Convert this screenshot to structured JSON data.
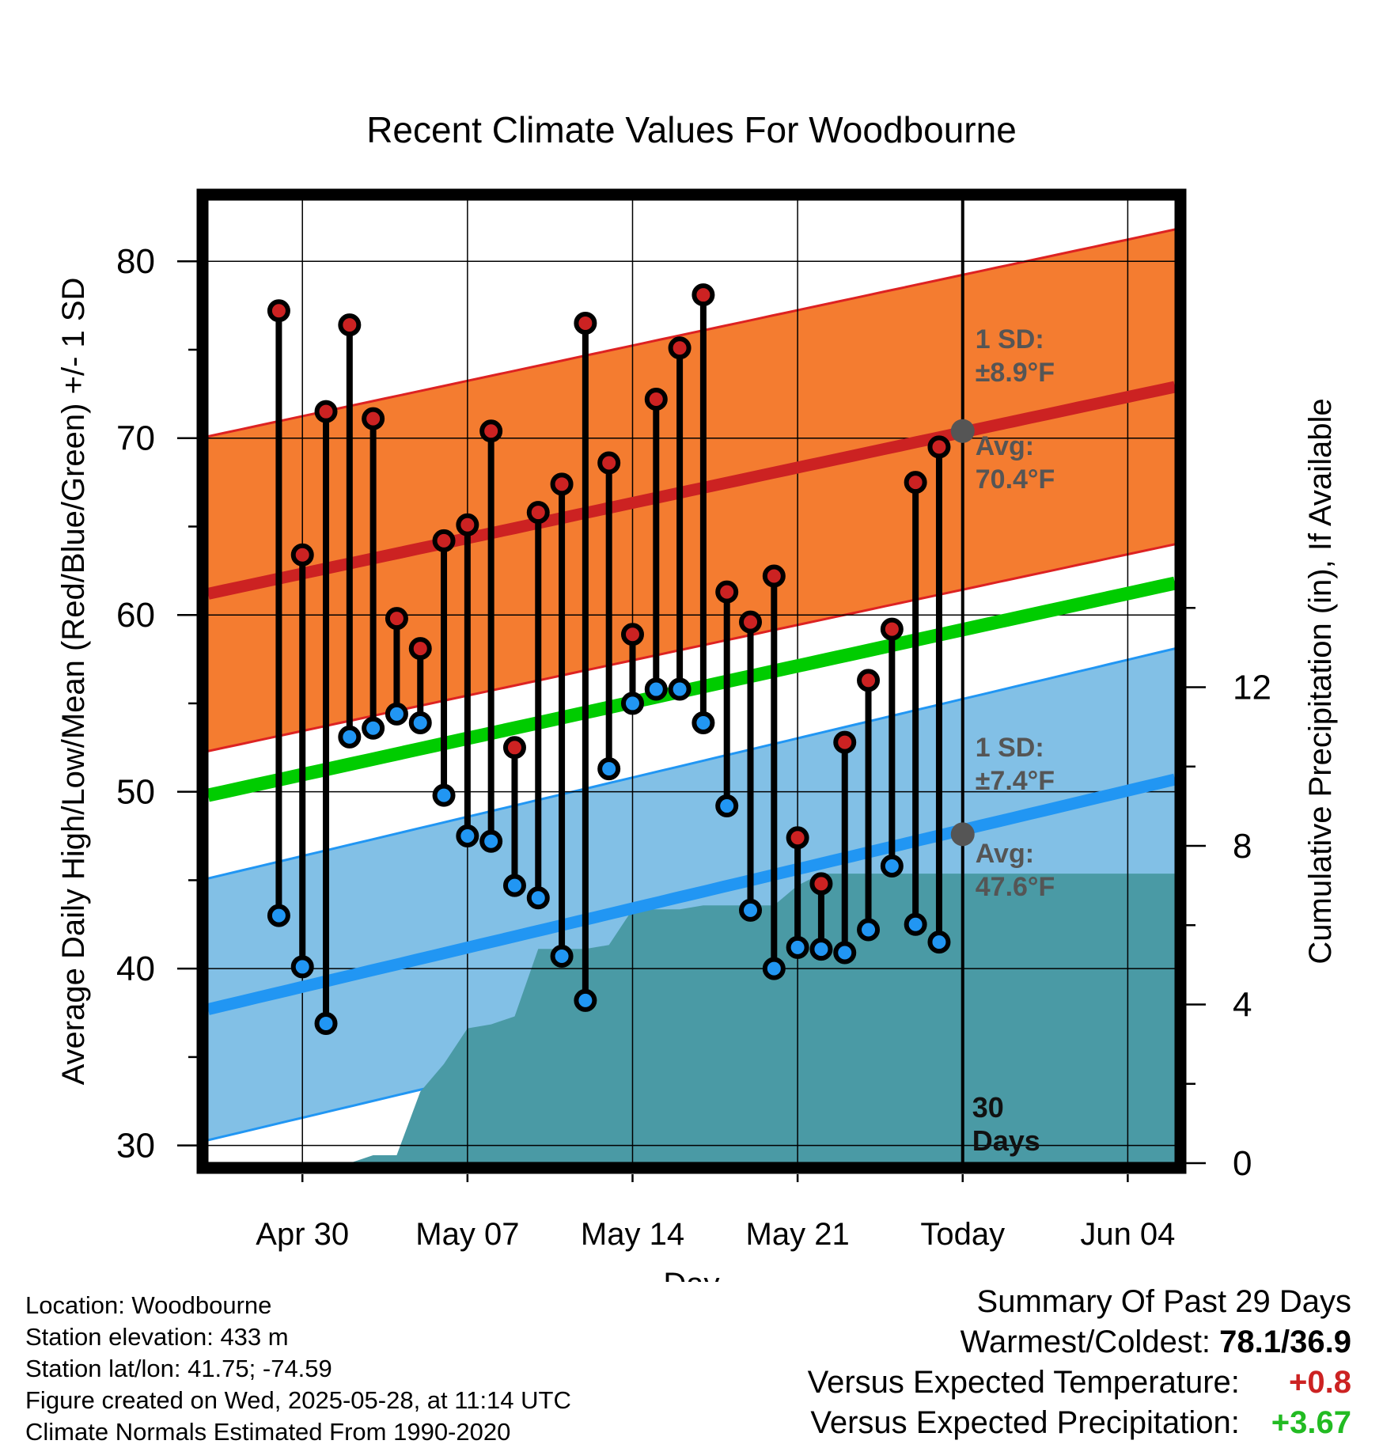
{
  "chart_data": {
    "type": "line",
    "title": "Recent Climate Values For Woodbourne",
    "xlabel": "Day",
    "ylabel": "Average Daily High/Low/Mean (Red/Blue/Green) +/- 1 SD",
    "y2label": "Cumulative Precipitation (in), If Available",
    "ylim": [
      29,
      83.5
    ],
    "y2lim": [
      0,
      24.3
    ],
    "x_ticks": [
      "Apr 30",
      "May 07",
      "May 14",
      "May 21",
      "Today",
      "Jun 04"
    ],
    "y_ticks": [
      30,
      40,
      50,
      60,
      70,
      80
    ],
    "y2_ticks": [
      0,
      4,
      8,
      12
    ],
    "grid": true,
    "days": [
      "Apr 29",
      "Apr 30",
      "May 01",
      "May 02",
      "May 03",
      "May 04",
      "May 05",
      "May 06",
      "May 07",
      "May 08",
      "May 09",
      "May 10",
      "May 11",
      "May 12",
      "May 13",
      "May 14",
      "May 15",
      "May 16",
      "May 17",
      "May 18",
      "May 19",
      "May 20",
      "May 21",
      "May 22",
      "May 23",
      "May 24",
      "May 25",
      "May 26",
      "May 27"
    ],
    "series": [
      {
        "name": "High",
        "color": "#cc2222",
        "values": [
          77.2,
          63.4,
          71.5,
          76.4,
          71.1,
          59.8,
          58.1,
          64.2,
          65.1,
          70.4,
          52.5,
          65.8,
          67.4,
          76.5,
          68.6,
          58.9,
          72.2,
          75.1,
          78.1,
          61.3,
          59.6,
          62.2,
          47.4,
          44.8,
          52.8,
          56.3,
          59.2,
          67.5,
          69.5
        ]
      },
      {
        "name": "Low",
        "color": "#2196f3",
        "values": [
          43.0,
          40.1,
          36.9,
          53.1,
          53.6,
          54.4,
          53.9,
          49.8,
          47.5,
          47.2,
          44.7,
          44.0,
          40.7,
          38.2,
          51.3,
          55.0,
          55.8,
          55.8,
          53.9,
          49.2,
          43.3,
          40.0,
          41.2,
          41.1,
          40.9,
          42.2,
          45.8,
          42.5,
          41.5
        ]
      }
    ],
    "normals": {
      "high_avg_start": 61.2,
      "high_avg_end": 72.9,
      "high_sd": 8.9,
      "low_avg_start": 37.7,
      "low_avg_end": 50.7,
      "low_sd": 7.4,
      "mean_start": 49.8,
      "mean_end": 61.8,
      "x_start": "Apr 26",
      "x_end": "Jun 06"
    },
    "precipitation": {
      "x": [
        "Apr 27",
        "Apr 28",
        "Apr 29",
        "Apr 30",
        "May 01",
        "May 02",
        "May 03",
        "May 04",
        "May 05",
        "May 06",
        "May 07",
        "May 08",
        "May 09",
        "May 10",
        "May 11",
        "May 12",
        "May 13",
        "May 14",
        "May 15",
        "May 16",
        "May 17",
        "May 18",
        "May 19",
        "May 20",
        "May 21",
        "May 22",
        "May 23",
        "May 24",
        "May 25",
        "May 26",
        "May 27",
        "Jun 06"
      ],
      "cumulative": [
        0,
        0,
        0,
        0,
        0,
        0,
        0.2,
        0.2,
        1.8,
        2.5,
        3.4,
        3.5,
        3.7,
        5.4,
        5.4,
        5.4,
        5.5,
        6.4,
        6.4,
        6.4,
        6.5,
        6.5,
        6.5,
        6.5,
        7.0,
        7.3,
        7.3,
        7.3,
        7.3,
        7.3,
        7.3,
        7.3
      ]
    },
    "annotations": {
      "high_sd_label": "1 SD:",
      "high_sd_value": "±8.9°F",
      "high_avg_label": "Avg:",
      "high_avg_value": "70.4°F",
      "low_sd_label": "1 SD:",
      "low_sd_value": "±7.4°F",
      "low_avg_label": "Avg:",
      "low_avg_value": "47.6°F",
      "today_high_avg": 70.4,
      "today_low_avg": 47.6,
      "days_count": "30",
      "days_word": "Days"
    },
    "colors": {
      "high_band": "#f47c30",
      "high_line": "#cc2222",
      "low_band": "#82c0e6",
      "low_line": "#2196f3",
      "mean_line": "#00cc00",
      "precip": "#4a9aa5",
      "annotation": "#555555"
    }
  },
  "info": {
    "location": "Location: Woodbourne",
    "elevation": "Station elevation: 433 m",
    "latlon": "Station lat/lon: 41.75; -74.59",
    "created": "Figure created on Wed, 2025-05-28, at 11:14 UTC",
    "normals": "Climate Normals Estimated From 1990-2020"
  },
  "summary": {
    "title": "Summary Of Past 29 Days",
    "warmest_label": "Warmest/Coldest:",
    "warmest_value": "78.1/36.9",
    "temp_label": "Versus Expected Temperature:",
    "temp_value": "+0.8",
    "temp_color": "#cc2222",
    "precip_label": "Versus Expected Precipitation:",
    "precip_value": "+3.67",
    "precip_color": "#22bb22"
  }
}
